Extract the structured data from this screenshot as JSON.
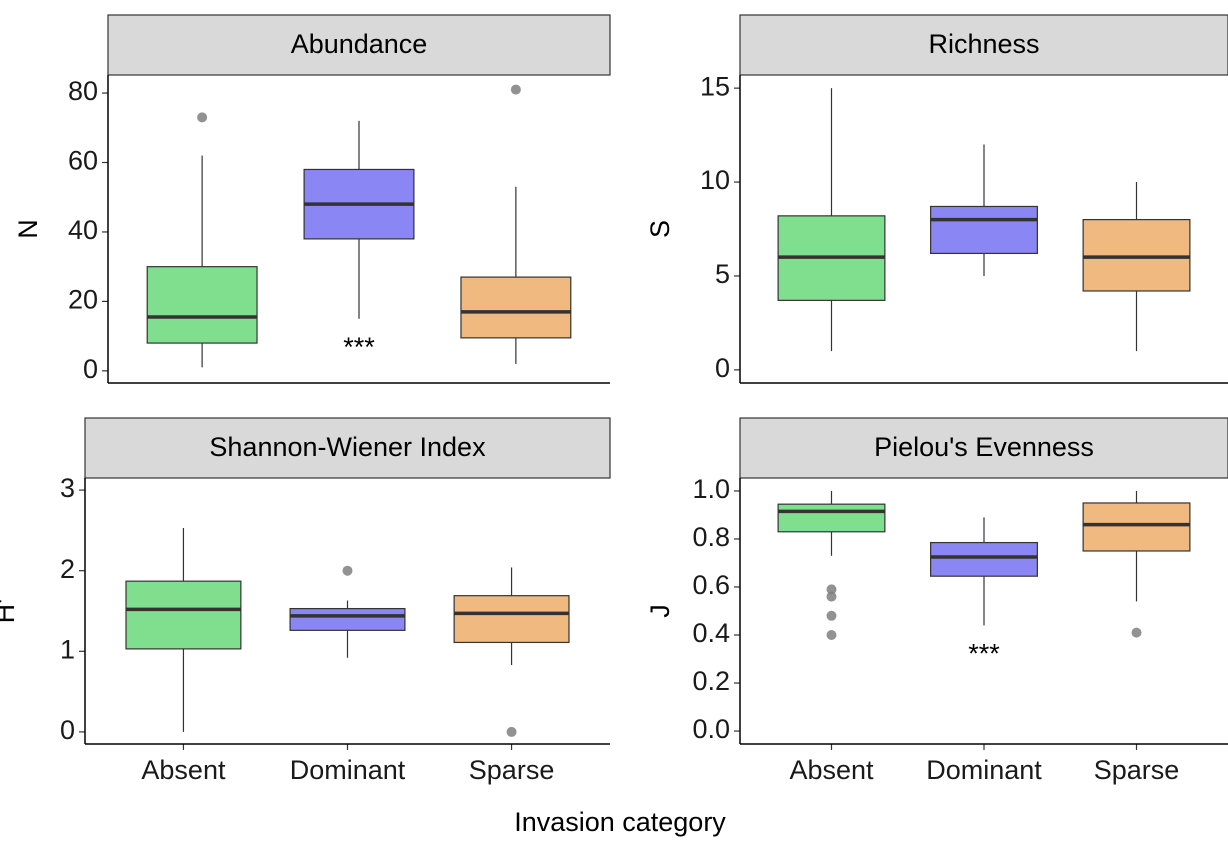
{
  "chart_data": [
    {
      "type": "box",
      "title": "Abundance",
      "ylabel": "N",
      "categories": [
        null,
        null,
        null
      ],
      "colors": [
        "#7fdf8f",
        "#8a87f4",
        "#efb980"
      ],
      "ylim": [
        -3.5,
        85.2
      ],
      "yticks": [
        0,
        20,
        40,
        60,
        80
      ],
      "boxes": [
        {
          "min": 1,
          "q1": 8,
          "median": 15.5,
          "q3": 30,
          "max": 62,
          "outliers": [
            73
          ]
        },
        {
          "min": 15,
          "q1": 38,
          "median": 48,
          "q3": 58,
          "max": 72,
          "outliers": [],
          "annotation": "***"
        },
        {
          "min": 2,
          "q1": 9.5,
          "median": 17,
          "q3": 27,
          "max": 53,
          "outliers": [
            81
          ]
        }
      ]
    },
    {
      "type": "box",
      "title": "Richness",
      "ylabel": "S",
      "categories": [
        null,
        null,
        null
      ],
      "colors": [
        "#7fdf8f",
        "#8a87f4",
        "#efb980"
      ],
      "ylim": [
        -0.7,
        15.7
      ],
      "yticks": [
        0,
        5,
        10,
        15
      ],
      "boxes": [
        {
          "min": 1,
          "q1": 3.7,
          "median": 6,
          "q3": 8.2,
          "max": 15,
          "outliers": []
        },
        {
          "min": 5,
          "q1": 6.2,
          "median": 8,
          "q3": 8.7,
          "max": 12,
          "outliers": []
        },
        {
          "min": 1,
          "q1": 4.2,
          "median": 6,
          "q3": 8,
          "max": 10,
          "outliers": []
        }
      ]
    },
    {
      "type": "box",
      "title": "Shannon-Wiener Index",
      "ylabel": "H'",
      "categories": [
        "Absent",
        "Dominant",
        "Sparse"
      ],
      "colors": [
        "#7fdf8f",
        "#8a87f4",
        "#efb980"
      ],
      "ylim": [
        -0.15,
        3.15
      ],
      "yticks": [
        0,
        1,
        2,
        3
      ],
      "boxes": [
        {
          "min": 0,
          "q1": 1.03,
          "median": 1.52,
          "q3": 1.87,
          "max": 2.53,
          "outliers": []
        },
        {
          "min": 0.92,
          "q1": 1.26,
          "median": 1.44,
          "q3": 1.53,
          "max": 1.63,
          "outliers": [
            2.0
          ]
        },
        {
          "min": 0.83,
          "q1": 1.11,
          "median": 1.47,
          "q3": 1.69,
          "max": 2.04,
          "outliers": [
            0
          ]
        }
      ]
    },
    {
      "type": "box",
      "title": "Pielou's Evenness",
      "ylabel": "J",
      "categories": [
        "Absent",
        "Dominant",
        "Sparse"
      ],
      "colors": [
        "#7fdf8f",
        "#8a87f4",
        "#efb980"
      ],
      "ylim": [
        -0.054,
        1.054
      ],
      "yticks": [
        {
          "value": 0,
          "label": "0.0"
        },
        0.2,
        0.4,
        0.6,
        0.8,
        {
          "value": 1,
          "label": "1.0"
        }
      ],
      "boxes": [
        {
          "min": 0.73,
          "q1": 0.83,
          "median": 0.915,
          "q3": 0.945,
          "max": 1.0,
          "outliers": [
            0.59,
            0.56,
            0.48,
            0.4
          ]
        },
        {
          "min": 0.44,
          "q1": 0.645,
          "median": 0.725,
          "q3": 0.785,
          "max": 0.89,
          "outliers": [],
          "annotation": "***"
        },
        {
          "min": 0.54,
          "q1": 0.75,
          "median": 0.86,
          "q3": 0.95,
          "max": 1.0,
          "outliers": [
            0.41
          ]
        }
      ]
    }
  ],
  "xlabel": "Invasion category"
}
